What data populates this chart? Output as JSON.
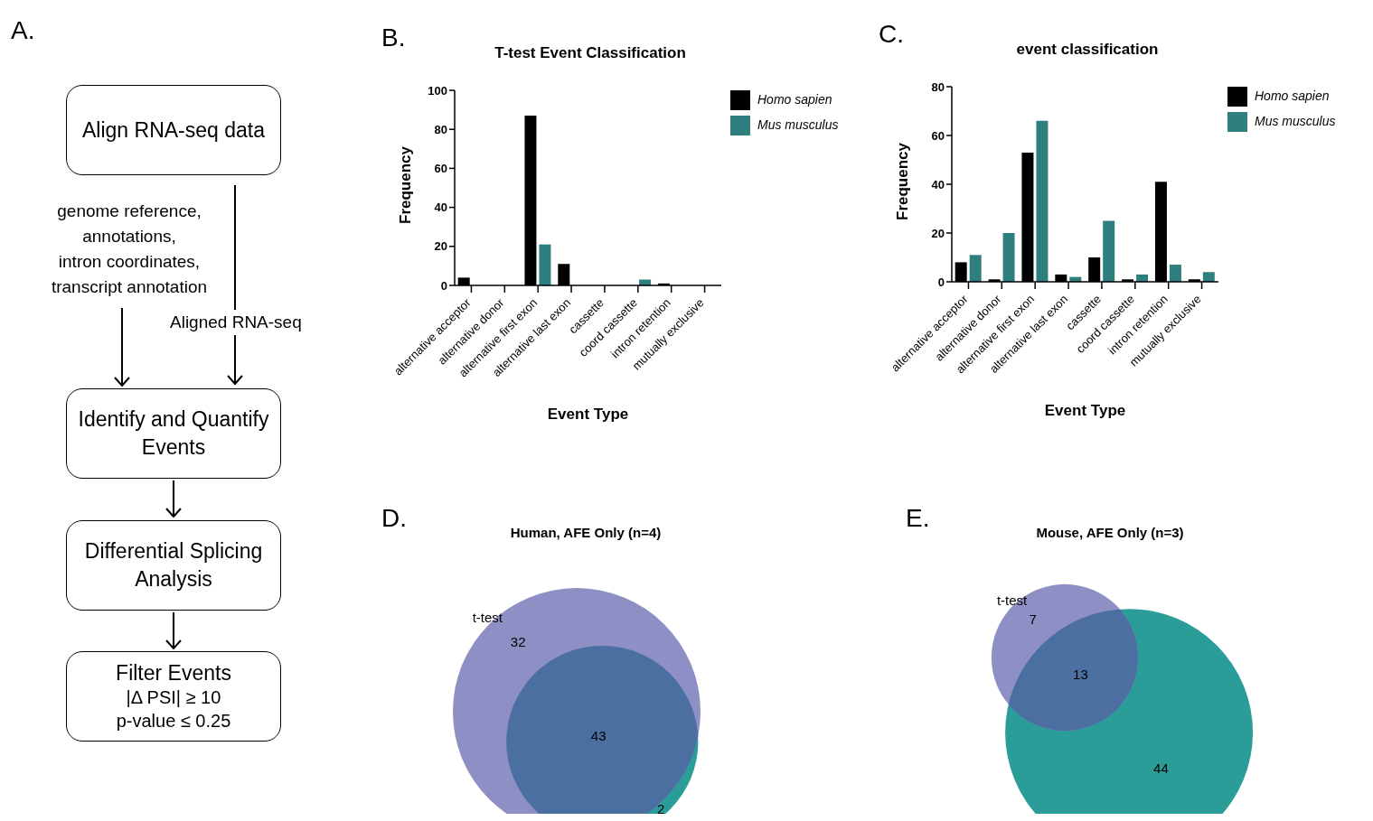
{
  "chart_data": [
    {
      "type": "other",
      "annotations": [
        "A.",
        "Align RNA-seq data",
        "Identify and Quantify Events",
        "Differential Splicing Analysis",
        "Filter Events\n|Δ PSI| ≥ 10\np-value ≤  0.25",
        "genome reference,\nannotations,\nintron coordinates,\ntranscript annotation",
        "Aligned RNA-seq"
      ]
    },
    {
      "type": "bar",
      "title": "T-test Event Classification",
      "xlabel": "Event Type",
      "ylabel": "Frequency",
      "annotations": [
        "B."
      ],
      "categories": [
        "alternative acceptor",
        "alternative donor",
        "alternative first exon",
        "alternative last exon",
        "cassette",
        "coord cassette",
        "intron retention",
        "mutually exclusive"
      ],
      "series": [
        {
          "name": "Homo sapien",
          "color": "#000000",
          "values": [
            4,
            0,
            87,
            11,
            0,
            0,
            1,
            0
          ]
        },
        {
          "name": "Mus musculus",
          "color": "#2f7f7f",
          "values": [
            0,
            0,
            21,
            0,
            0,
            3,
            0,
            0
          ]
        }
      ],
      "ylim": [
        0,
        100
      ],
      "yticks": [
        0,
        20,
        40,
        60,
        80,
        100
      ],
      "legend": "top right"
    },
    {
      "type": "bar",
      "title": "event classification",
      "xlabel": "Event Type",
      "ylabel": "Frequency",
      "annotations": [
        "C."
      ],
      "categories": [
        "alternative acceptor",
        "alternative donor",
        "alternative first exon",
        "alternative last exon",
        "cassette",
        "coord cassette",
        "intron retention",
        "mutually exclusive"
      ],
      "series": [
        {
          "name": "Homo sapien",
          "color": "#000000",
          "values": [
            8,
            1,
            53,
            3,
            10,
            1,
            41,
            1
          ]
        },
        {
          "name": "Mus musculus",
          "color": "#2f7f7f",
          "values": [
            11,
            20,
            66,
            2,
            25,
            3,
            7,
            4
          ]
        }
      ],
      "ylim": [
        0,
        80
      ],
      "yticks": [
        0,
        20,
        40,
        60,
        80
      ],
      "legend": "top right"
    },
    {
      "type": "other",
      "title": "Human, AFE Only (n=4)",
      "annotations": [
        "D.",
        "t-test"
      ],
      "categories": [
        null,
        null,
        null
      ],
      "values": [
        32,
        43,
        2
      ],
      "colors": [
        "#8e8fc4",
        "#4a6fa0",
        "#2a9d99"
      ],
      "data_labels": true
    },
    {
      "type": "other",
      "title": "Mouse, AFE Only (n=3)",
      "annotations": [
        "E.",
        "t-test"
      ],
      "categories": [
        null,
        null,
        null
      ],
      "values": [
        7,
        13,
        44
      ],
      "colors": [
        "#8e8fc4",
        "#4a6fa0",
        "#2a9d99"
      ],
      "data_labels": true
    }
  ]
}
